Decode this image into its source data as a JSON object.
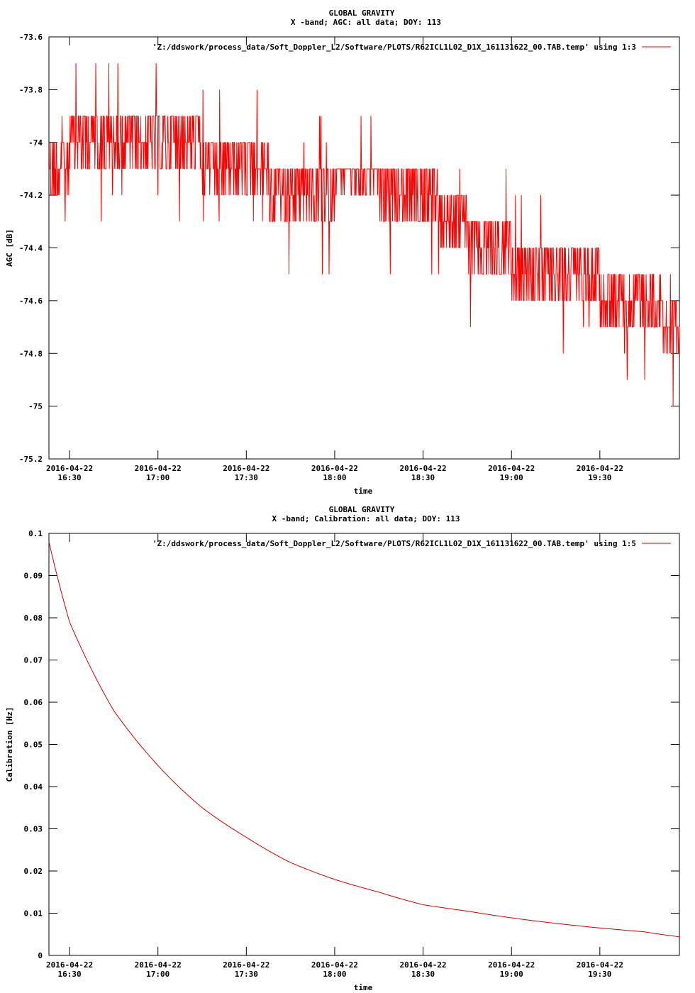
{
  "chart_data": [
    {
      "type": "line",
      "title": "GLOBAL GRAVITY",
      "subtitle": "X -band; AGC: all data; DOY: 113",
      "xlabel": "time",
      "ylabel": "AGC [dB]",
      "ylim": [
        -75.2,
        -73.6
      ],
      "yticks": [
        "-73.6",
        "-73.8",
        "-74",
        "-74.2",
        "-74.4",
        "-74.6",
        "-74.8",
        "-75",
        "-75.2"
      ],
      "ytick_values": [
        -73.6,
        -73.8,
        -74.0,
        -74.2,
        -74.4,
        -74.6,
        -74.8,
        -75.0,
        -75.2
      ],
      "xlim": [
        "2016-04-22 16:23",
        "2016-04-22 19:57"
      ],
      "xticks": [
        {
          "date": "2016-04-22",
          "time": "16:30",
          "value": "2016-04-22 16:30"
        },
        {
          "date": "2016-04-22",
          "time": "17:00",
          "value": "2016-04-22 17:00"
        },
        {
          "date": "2016-04-22",
          "time": "17:30",
          "value": "2016-04-22 17:30"
        },
        {
          "date": "2016-04-22",
          "time": "18:00",
          "value": "2016-04-22 18:00"
        },
        {
          "date": "2016-04-22",
          "time": "18:30",
          "value": "2016-04-22 18:30"
        },
        {
          "date": "2016-04-22",
          "time": "19:00",
          "value": "2016-04-22 19:00"
        },
        {
          "date": "2016-04-22",
          "time": "19:30",
          "value": "2016-04-22 19:30"
        }
      ],
      "legend": "top-right",
      "grid": false,
      "series": [
        {
          "name": "'Z:/ddswork/process_data/Soft_Doppler_L2/Software/PLOTS/R62ICL1L02_D1X_161131622_00.TAB.temp' using 1:3",
          "color": "#ff0000",
          "x": [
            "2016-04-22 16:23",
            "2016-04-22 16:30",
            "2016-04-22 16:45",
            "2016-04-22 17:00",
            "2016-04-22 17:15",
            "2016-04-22 17:30",
            "2016-04-22 17:45",
            "2016-04-22 18:00",
            "2016-04-22 18:15",
            "2016-04-22 18:30",
            "2016-04-22 18:45",
            "2016-04-22 19:00",
            "2016-04-22 19:15",
            "2016-04-22 19:30",
            "2016-04-22 19:45",
            "2016-04-22 19:57"
          ],
          "values": [
            -74.15,
            -74.05,
            -74.05,
            -74.05,
            -74.05,
            -74.1,
            -74.2,
            -74.15,
            -74.15,
            -74.2,
            -74.35,
            -74.45,
            -74.5,
            -74.55,
            -74.6,
            -74.7
          ]
        }
      ]
    },
    {
      "type": "line",
      "title": "GLOBAL GRAVITY",
      "subtitle": "X -band; Calibration: all data; DOY: 113",
      "xlabel": "time",
      "ylabel": "Calibration [Hz]",
      "ylim": [
        0,
        0.1
      ],
      "yticks": [
        "0.1",
        "0.09",
        "0.08",
        "0.07",
        "0.06",
        "0.05",
        "0.04",
        "0.03",
        "0.02",
        "0.01",
        "0"
      ],
      "ytick_values": [
        0.1,
        0.09,
        0.08,
        0.07,
        0.06,
        0.05,
        0.04,
        0.03,
        0.02,
        0.01,
        0
      ],
      "xlim": [
        "2016-04-22 16:23",
        "2016-04-22 19:57"
      ],
      "xticks": [
        {
          "date": "2016-04-22",
          "time": "16:30",
          "value": "2016-04-22 16:30"
        },
        {
          "date": "2016-04-22",
          "time": "17:00",
          "value": "2016-04-22 17:00"
        },
        {
          "date": "2016-04-22",
          "time": "17:30",
          "value": "2016-04-22 17:30"
        },
        {
          "date": "2016-04-22",
          "time": "18:00",
          "value": "2016-04-22 18:00"
        },
        {
          "date": "2016-04-22",
          "time": "18:30",
          "value": "2016-04-22 18:30"
        },
        {
          "date": "2016-04-22",
          "time": "19:00",
          "value": "2016-04-22 19:00"
        },
        {
          "date": "2016-04-22",
          "time": "19:30",
          "value": "2016-04-22 19:30"
        }
      ],
      "legend": "top-right",
      "grid": false,
      "series": [
        {
          "name": "'Z:/ddswork/process_data/Soft_Doppler_L2/Software/PLOTS/R62ICL1L02_D1X_161131622_00.TAB.temp' using 1:5",
          "color": "#cc0000",
          "x": [
            "2016-04-22 16:23",
            "2016-04-22 16:30",
            "2016-04-22 16:45",
            "2016-04-22 17:00",
            "2016-04-22 17:15",
            "2016-04-22 17:30",
            "2016-04-22 17:45",
            "2016-04-22 18:00",
            "2016-04-22 18:15",
            "2016-04-22 18:30",
            "2016-04-22 18:45",
            "2016-04-22 19:00",
            "2016-04-22 19:15",
            "2016-04-22 19:30",
            "2016-04-22 19:45",
            "2016-04-22 19:57"
          ],
          "values": [
            0.098,
            0.079,
            0.058,
            0.045,
            0.035,
            0.028,
            0.022,
            0.018,
            0.015,
            0.012,
            0.0105,
            0.0089,
            0.0076,
            0.0065,
            0.0056,
            0.0044
          ]
        }
      ]
    }
  ]
}
